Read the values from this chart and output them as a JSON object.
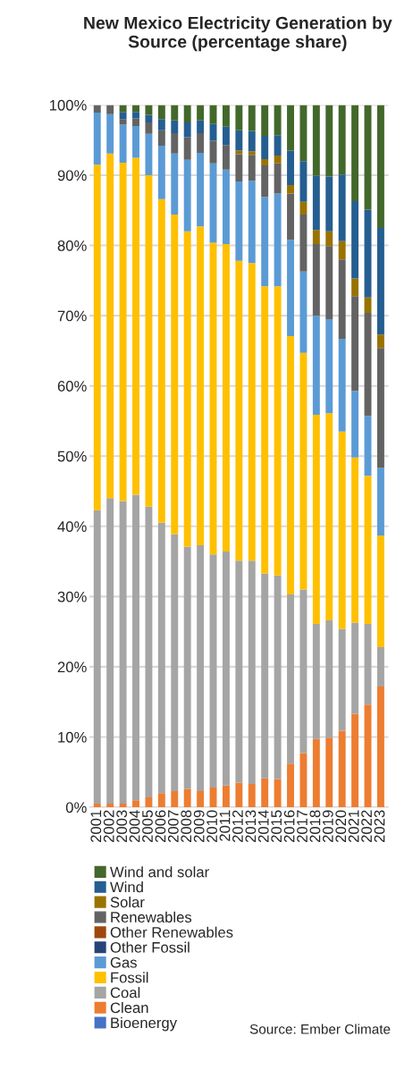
{
  "chart_data": {
    "type": "bar",
    "stacked": true,
    "title": "New Mexico Electricity Generation by Source (percentage share)",
    "categories": [
      "2001",
      "2002",
      "2003",
      "2004",
      "2005",
      "2006",
      "2007",
      "2008",
      "2009",
      "2010",
      "2011",
      "2012",
      "2013",
      "2014",
      "2015",
      "2016",
      "2017",
      "2018",
      "2019",
      "2020",
      "2021",
      "2022",
      "2023"
    ],
    "series": [
      {
        "name": "Bioenergy",
        "color": "#4472c4",
        "values": [
          0,
          0,
          0,
          0,
          0,
          0,
          0,
          0,
          0,
          0,
          0,
          0,
          0,
          0,
          0,
          0,
          0,
          0,
          0,
          0,
          0,
          0,
          0
        ]
      },
      {
        "name": "Clean",
        "color": "#ed7d31",
        "values": [
          0.5,
          0.5,
          0.5,
          1,
          1.4,
          2,
          2.3,
          2.6,
          2.3,
          2.8,
          3.1,
          3.5,
          3.3,
          4.1,
          4.0,
          6.2,
          7.7,
          9.7,
          9.9,
          10.9,
          13.3,
          14.6,
          17.2
        ]
      },
      {
        "name": "Coal",
        "color": "#a5a5a5",
        "values": [
          41.8,
          43.5,
          43.1,
          43.5,
          41.4,
          38.5,
          36.6,
          34.5,
          35.0,
          33.2,
          33.3,
          31.6,
          31.8,
          29.2,
          29.0,
          24.1,
          23.3,
          16.4,
          16.7,
          14.5,
          13.0,
          11.5,
          5.6
        ]
      },
      {
        "name": "Fossil",
        "color": "#ffc000",
        "values": [
          49.2,
          49.1,
          48.2,
          48.0,
          47.2,
          46.1,
          45.5,
          44.9,
          45.4,
          44.4,
          43.8,
          42.7,
          42.4,
          40.9,
          41.2,
          36.8,
          33.7,
          29.8,
          29.5,
          28.1,
          23.5,
          21.1,
          15.9
        ]
      },
      {
        "name": "Gas",
        "color": "#5b9bd5",
        "values": [
          7.4,
          5.6,
          5.4,
          4.5,
          5.9,
          7.6,
          8.7,
          10.2,
          10.5,
          11.3,
          10.6,
          11.3,
          11.7,
          12.7,
          13.2,
          13.7,
          11.6,
          14.1,
          13.4,
          13.2,
          9.5,
          8.5,
          9.6
        ]
      },
      {
        "name": "Other Fossil",
        "color": "#264478",
        "values": [
          0,
          0,
          0,
          0,
          0,
          0,
          0,
          0,
          0,
          0,
          0,
          0,
          0,
          0,
          0,
          0,
          0,
          0,
          0,
          0,
          0,
          0,
          0
        ]
      },
      {
        "name": "Other Renewables",
        "color": "#9e480e",
        "values": [
          0,
          0,
          0,
          0,
          0,
          0,
          0,
          0,
          0,
          0,
          0,
          0,
          0,
          0,
          0,
          0,
          0,
          0,
          0,
          0,
          0,
          0,
          0
        ]
      },
      {
        "name": "Renewables",
        "color": "#636363",
        "values": [
          1.1,
          1.3,
          0.8,
          1.1,
          1.6,
          2.2,
          2.9,
          3.2,
          2.8,
          3.2,
          3.5,
          3.9,
          3.7,
          4.5,
          4.3,
          6.6,
          8.1,
          10.2,
          10.4,
          11.3,
          13.5,
          14.7,
          17.1
        ]
      },
      {
        "name": "Solar",
        "color": "#997300",
        "values": [
          0,
          0,
          0,
          0,
          0,
          0,
          0,
          0,
          0,
          0,
          0,
          0.5,
          0.5,
          0.9,
          1.1,
          1.2,
          1.8,
          2.0,
          2.1,
          2.6,
          2.5,
          2.2,
          1.9
        ]
      },
      {
        "name": "Wind",
        "color": "#255e91",
        "values": [
          0,
          0,
          1.0,
          0.9,
          1.1,
          1.6,
          1.8,
          2.1,
          1.8,
          2.4,
          2.6,
          2.9,
          2.9,
          3.3,
          2.9,
          4.9,
          5.8,
          7.7,
          7.8,
          9.5,
          11.0,
          12.5,
          15.2
        ]
      },
      {
        "name": "Wind and solar",
        "color": "#43682b",
        "values": [
          0,
          0,
          1.0,
          1.0,
          1.4,
          2.0,
          2.2,
          2.5,
          2.2,
          2.7,
          3.1,
          3.6,
          3.7,
          4.4,
          4.3,
          6.5,
          8.0,
          10.1,
          10.2,
          9.9,
          13.7,
          14.9,
          17.5
        ]
      }
    ],
    "ylim": [
      0,
      100
    ],
    "yticks": [
      {
        "value": 0,
        "label": "0%"
      },
      {
        "value": 10,
        "label": "10%"
      },
      {
        "value": 20,
        "label": "20%"
      },
      {
        "value": 30,
        "label": "30%"
      },
      {
        "value": 40,
        "label": "40%"
      },
      {
        "value": 50,
        "label": "50%"
      },
      {
        "value": 60,
        "label": "60%"
      },
      {
        "value": 70,
        "label": "70%"
      },
      {
        "value": 80,
        "label": "80%"
      },
      {
        "value": 90,
        "label": "90%"
      },
      {
        "value": 100,
        "label": "100%"
      }
    ],
    "grid": "y",
    "legend": "bottom",
    "annotations": [
      "Source: Ember Climate"
    ]
  }
}
